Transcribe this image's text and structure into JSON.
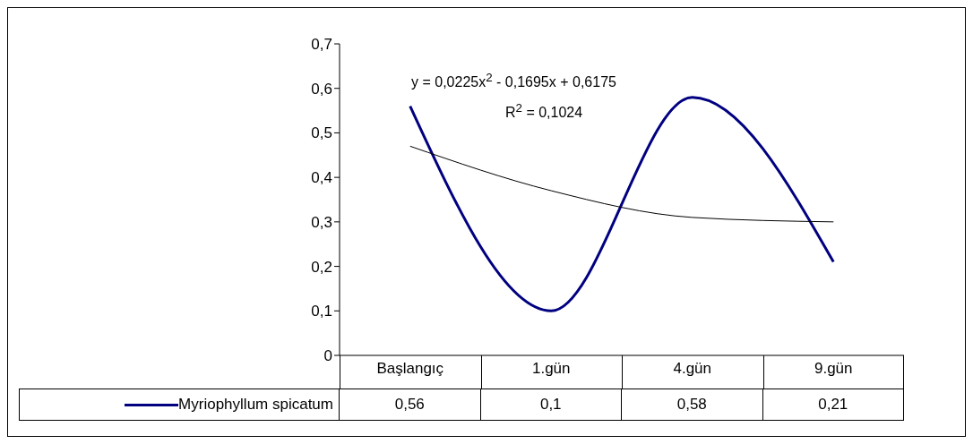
{
  "chart_data": {
    "type": "line",
    "categories": [
      "Başlangıç",
      "1.gün",
      "4.gün",
      "9.gün"
    ],
    "series": [
      {
        "name": "Myriophyllum spicatum",
        "color": "#000080",
        "values": [
          0.56,
          0.1,
          0.58,
          0.21
        ],
        "value_labels": [
          "0,56",
          "0,1",
          "0,58",
          "0,21"
        ]
      },
      {
        "type": "line",
        "color": "#000000",
        "values": [
          0.47,
          0.37,
          0.31,
          0.3
        ]
      }
    ],
    "ylim": [
      0,
      0.7
    ],
    "yticks": [
      0,
      {
        "value": 0.1,
        "label": "0,1"
      },
      {
        "value": 0.2,
        "label": "0,2"
      },
      {
        "value": 0.3,
        "label": "0,3"
      },
      {
        "value": 0.4,
        "label": "0,4"
      },
      {
        "value": 0.5,
        "label": "0,5"
      },
      {
        "value": 0.6,
        "label": "0,6"
      },
      {
        "value": 0.7,
        "label": "0,7"
      }
    ],
    "annotations": [
      "y = 0,0225x$^{2}$ - 0,1695x + 0,6175",
      "R$^{2}$ = 0,1024"
    ],
    "legend": "bottom",
    "grid": false,
    "marker": "none",
    "line_style": "solid"
  }
}
